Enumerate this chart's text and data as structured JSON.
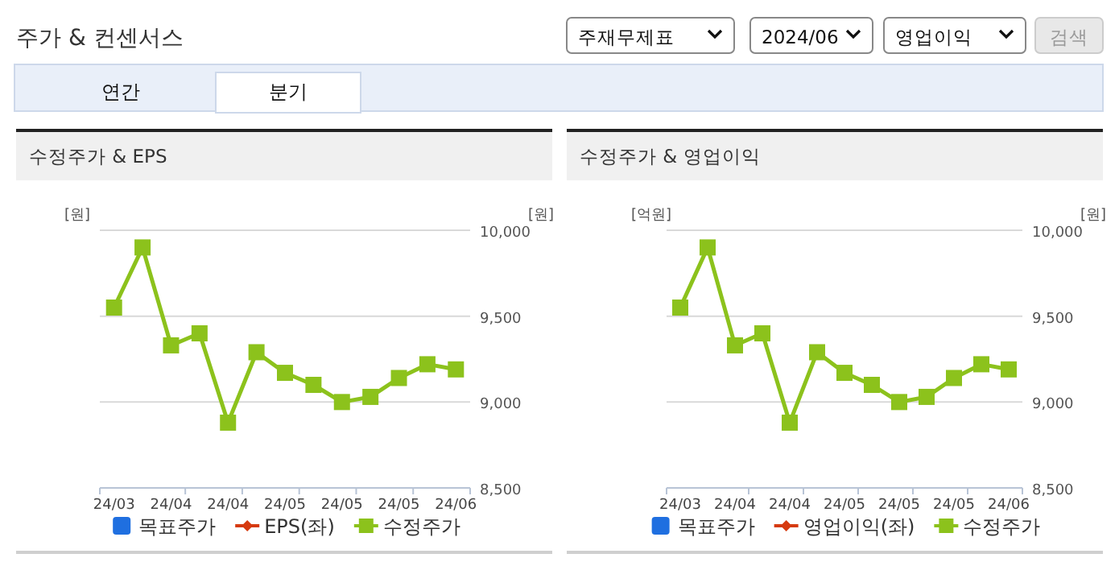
{
  "chart_data": [
    {
      "type": "other",
      "title": "주가 & 컨센서스",
      "annotations": [
        "주재무제표",
        "2024/06",
        "영업이익",
        "검색",
        "연간",
        "분기"
      ]
    },
    {
      "type": "line",
      "title": "수정주가 & EPS",
      "ylabel": "[원]",
      "y2label": "[원]",
      "categories": [
        "24/03",
        null,
        "24/04",
        null,
        "24/04",
        null,
        "24/05",
        null,
        "24/05",
        null,
        "24/05",
        null,
        "24/06"
      ],
      "series": [
        {
          "name": "목표주가",
          "color": "#1f6fe0",
          "marker": "square",
          "values": [
            null,
            null,
            null,
            null,
            null,
            null,
            null,
            null,
            null,
            null,
            null,
            null,
            null
          ]
        },
        {
          "name": "EPS(좌)",
          "color": "#d63a0f",
          "marker": "diamond",
          "values": [
            null,
            null,
            null,
            null,
            null,
            null,
            null,
            null,
            null,
            null,
            null,
            null,
            null
          ]
        },
        {
          "name": "수정주가",
          "color": "#8cc21c",
          "marker": "square",
          "axis": "y2",
          "values": [
            9550,
            9900,
            9330,
            9400,
            8880,
            9290,
            9170,
            9100,
            9000,
            9030,
            9140,
            9220,
            9190
          ]
        }
      ],
      "y2lim": [
        8500,
        10000
      ],
      "y2ticks": [
        {
          "value": 8500,
          "label": "8,500"
        },
        {
          "value": 9000,
          "label": "9,000"
        },
        {
          "value": 9500,
          "label": "9,500"
        },
        {
          "value": 10000,
          "label": "10,000"
        }
      ],
      "grid": "y",
      "legend": "bottom",
      "line_style": "solid"
    },
    {
      "type": "line",
      "title": "수정주가 & 영업이익",
      "ylabel": "[억원]",
      "y2label": "[원]",
      "categories": [
        "24/03",
        null,
        "24/04",
        null,
        "24/04",
        null,
        "24/05",
        null,
        "24/05",
        null,
        "24/05",
        null,
        "24/06"
      ],
      "series": [
        {
          "name": "목표주가",
          "color": "#1f6fe0",
          "marker": "square",
          "values": [
            null,
            null,
            null,
            null,
            null,
            null,
            null,
            null,
            null,
            null,
            null,
            null,
            null
          ]
        },
        {
          "name": "영업이익(좌)",
          "color": "#d63a0f",
          "marker": "diamond",
          "values": [
            null,
            null,
            null,
            null,
            null,
            null,
            null,
            null,
            null,
            null,
            null,
            null,
            null
          ]
        },
        {
          "name": "수정주가",
          "color": "#8cc21c",
          "marker": "square",
          "axis": "y2",
          "values": [
            9550,
            9900,
            9330,
            9400,
            8880,
            9290,
            9170,
            9100,
            9000,
            9030,
            9140,
            9220,
            9190
          ]
        }
      ],
      "y2lim": [
        8500,
        10000
      ],
      "y2ticks": [
        {
          "value": 8500,
          "label": "8,500"
        },
        {
          "value": 9000,
          "label": "9,000"
        },
        {
          "value": 9500,
          "label": "9,500"
        },
        {
          "value": 10000,
          "label": "10,000"
        }
      ],
      "grid": "y",
      "legend": "bottom",
      "line_style": "solid"
    }
  ]
}
